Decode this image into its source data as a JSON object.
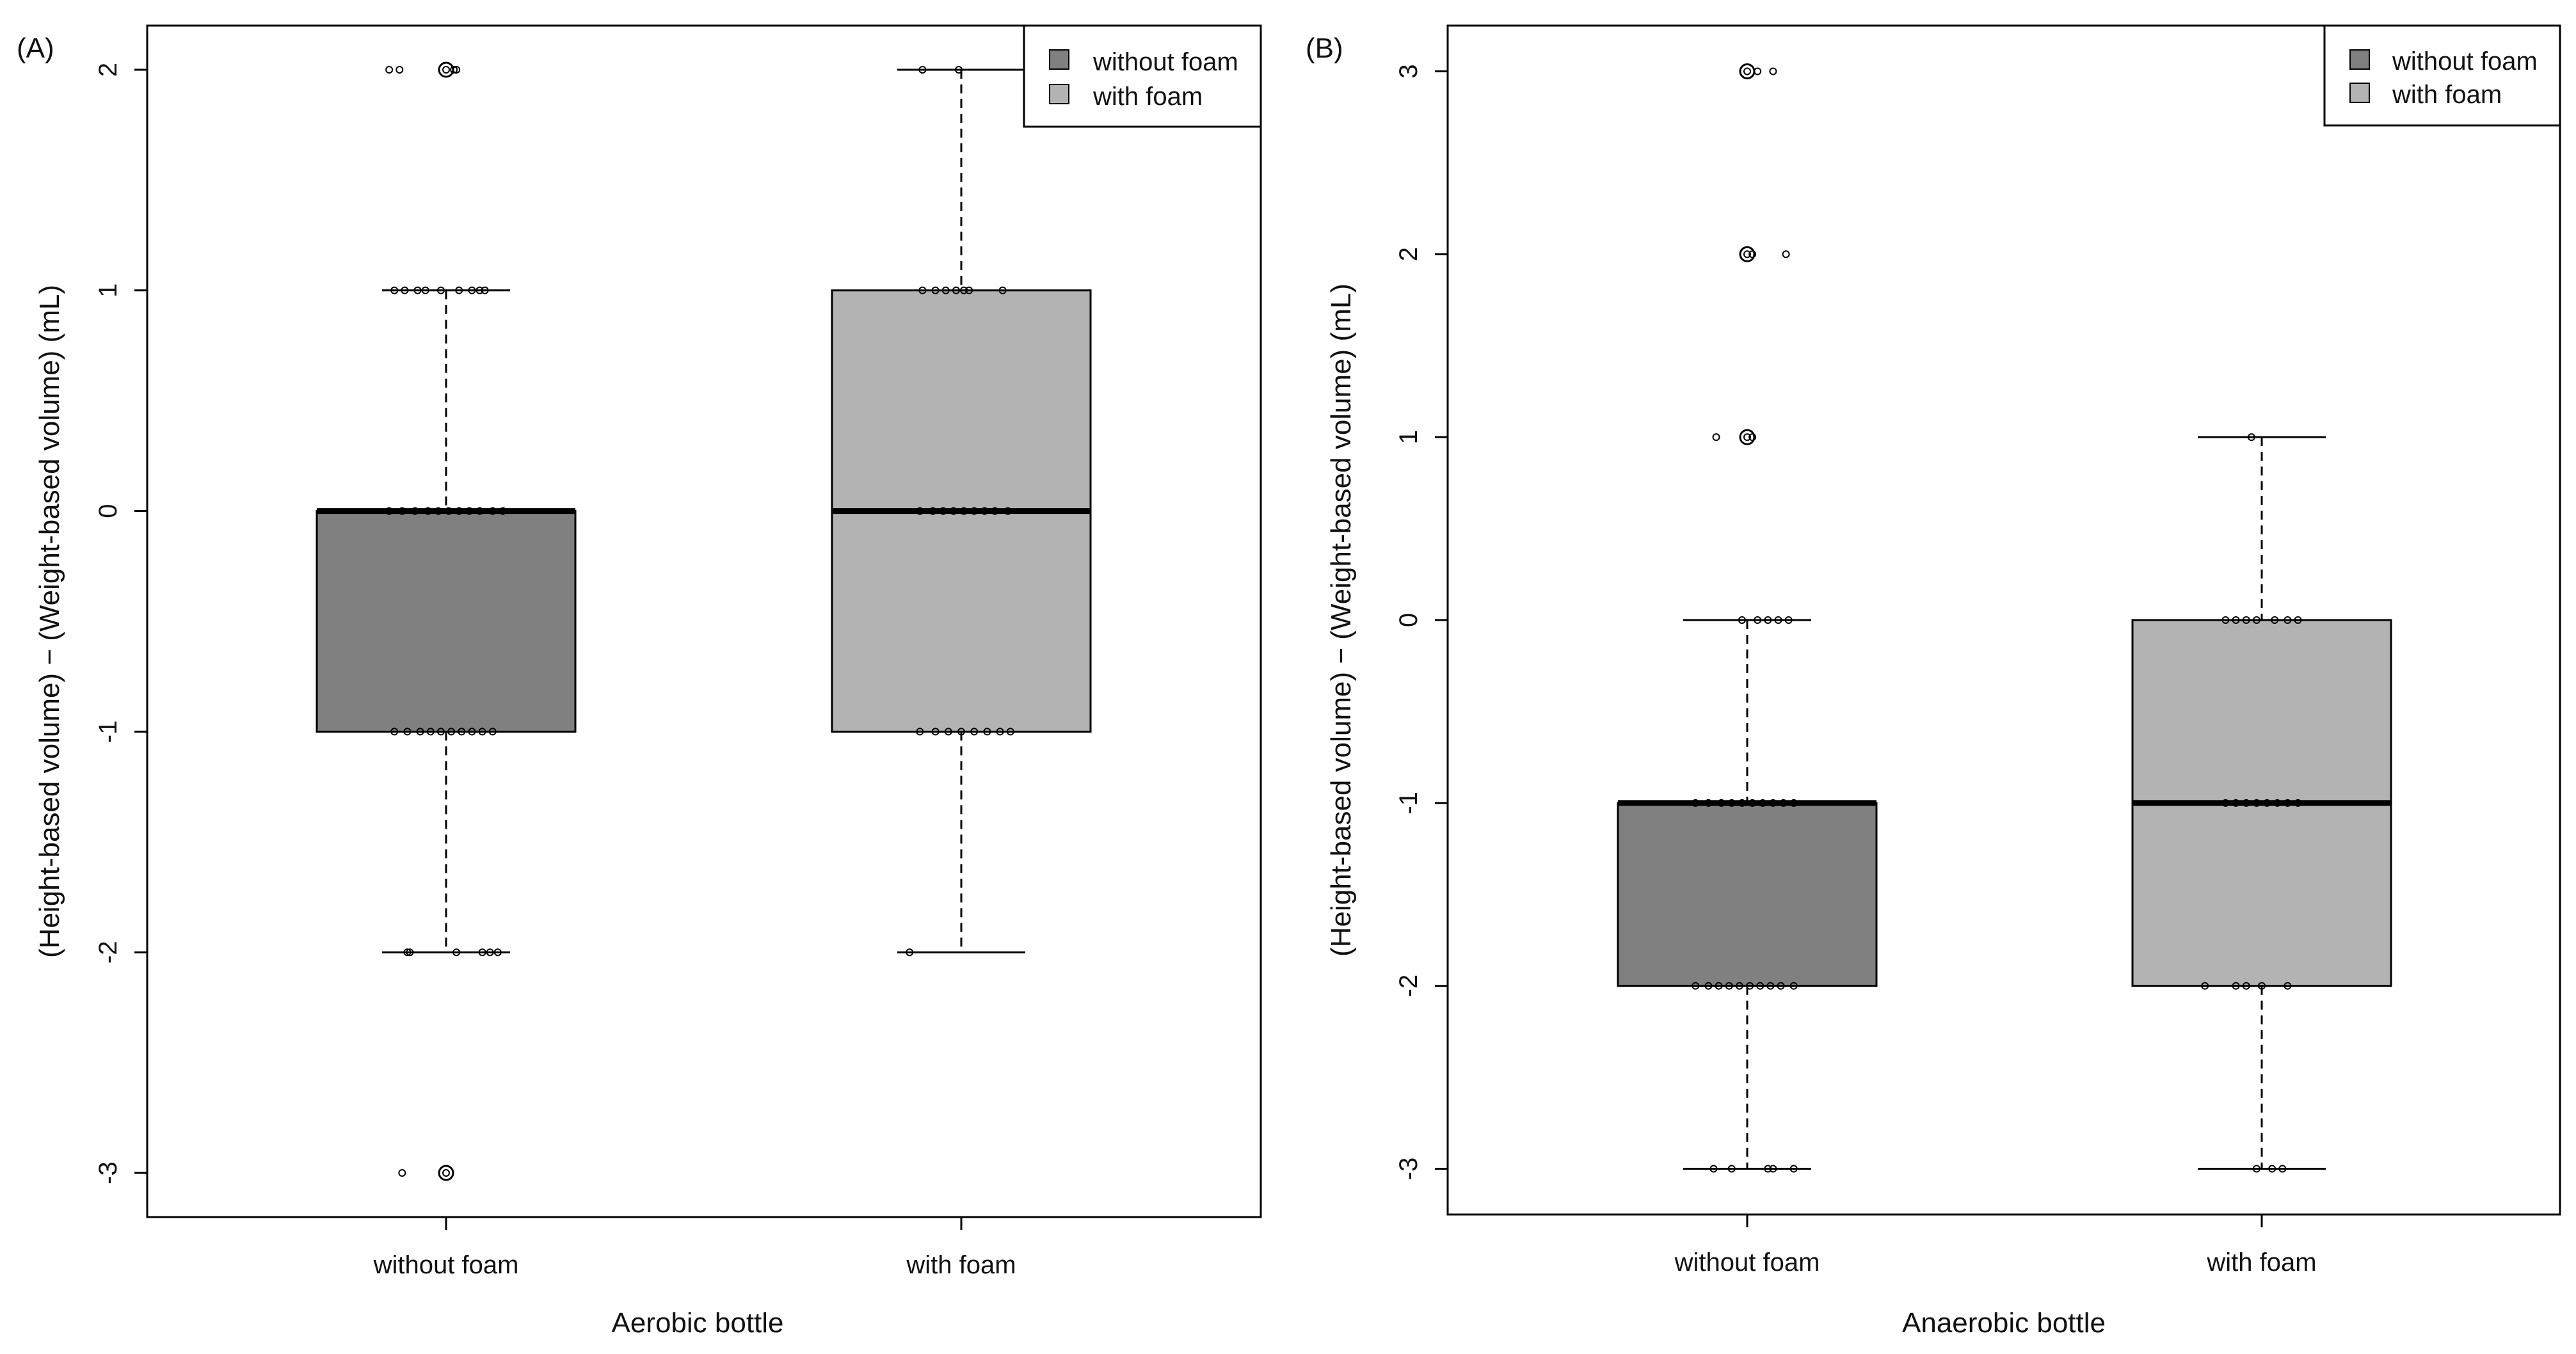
{
  "colors": {
    "without_foam_fill": "#808080",
    "with_foam_fill": "#b3b3b3",
    "frame": "#000000",
    "background": "#ffffff"
  },
  "chart_data": [
    {
      "type": "boxplot",
      "panel_label": "(A)",
      "title": "",
      "xlabel": "Aerobic bottle",
      "ylabel": "(Height-based volume) − (Weight-based volume) (mL)",
      "ylim": [
        -3.2,
        2.2
      ],
      "yticks": [
        -3,
        -2,
        -1,
        0,
        1,
        2
      ],
      "ytick_labels": [
        "-3",
        "-2",
        "-1",
        "0",
        "1",
        "2"
      ],
      "grid": false,
      "legend": {
        "position": "top-right",
        "entries": [
          "without foam",
          "with foam"
        ]
      },
      "categories": [
        "without foam",
        "with foam"
      ],
      "boxes": [
        {
          "name": "without foam",
          "q1": -1,
          "median": 0,
          "q3": 0,
          "whisker_low": -2,
          "whisker_high": 1,
          "outliers": [
            2,
            -3
          ],
          "points": [
            {
              "x": -0.22,
              "y": 2
            },
            {
              "x": -0.18,
              "y": 2
            },
            {
              "x": 0.0,
              "y": 2
            },
            {
              "x": 0.03,
              "y": 2
            },
            {
              "x": 0.04,
              "y": 2
            },
            {
              "x": -0.2,
              "y": 1
            },
            {
              "x": -0.16,
              "y": 1
            },
            {
              "x": -0.11,
              "y": 1
            },
            {
              "x": -0.08,
              "y": 1
            },
            {
              "x": -0.02,
              "y": 1
            },
            {
              "x": 0.05,
              "y": 1
            },
            {
              "x": 0.1,
              "y": 1
            },
            {
              "x": 0.13,
              "y": 1
            },
            {
              "x": 0.15,
              "y": 1
            },
            {
              "x": -0.22,
              "y": 0
            },
            {
              "x": -0.17,
              "y": 0
            },
            {
              "x": -0.12,
              "y": 0
            },
            {
              "x": -0.07,
              "y": 0
            },
            {
              "x": -0.03,
              "y": 0
            },
            {
              "x": 0.01,
              "y": 0
            },
            {
              "x": 0.05,
              "y": 0
            },
            {
              "x": 0.09,
              "y": 0
            },
            {
              "x": 0.13,
              "y": 0
            },
            {
              "x": 0.18,
              "y": 0
            },
            {
              "x": 0.22,
              "y": 0
            },
            {
              "x": -0.2,
              "y": -1
            },
            {
              "x": -0.15,
              "y": -1
            },
            {
              "x": -0.1,
              "y": -1
            },
            {
              "x": -0.06,
              "y": -1
            },
            {
              "x": -0.02,
              "y": -1
            },
            {
              "x": 0.02,
              "y": -1
            },
            {
              "x": 0.06,
              "y": -1
            },
            {
              "x": 0.1,
              "y": -1
            },
            {
              "x": 0.14,
              "y": -1
            },
            {
              "x": 0.18,
              "y": -1
            },
            {
              "x": -0.15,
              "y": -2
            },
            {
              "x": -0.14,
              "y": -2
            },
            {
              "x": 0.04,
              "y": -2
            },
            {
              "x": 0.14,
              "y": -2
            },
            {
              "x": 0.17,
              "y": -2
            },
            {
              "x": 0.2,
              "y": -2
            },
            {
              "x": -0.17,
              "y": -3
            },
            {
              "x": 0.0,
              "y": -3
            }
          ]
        },
        {
          "name": "with foam",
          "q1": -1,
          "median": 0,
          "q3": 1,
          "whisker_low": -2,
          "whisker_high": 2,
          "outliers": [],
          "points": [
            {
              "x": -0.15,
              "y": 2
            },
            {
              "x": -0.01,
              "y": 2
            },
            {
              "x": -0.15,
              "y": 1
            },
            {
              "x": -0.1,
              "y": 1
            },
            {
              "x": -0.06,
              "y": 1
            },
            {
              "x": -0.02,
              "y": 1
            },
            {
              "x": 0.01,
              "y": 1
            },
            {
              "x": 0.03,
              "y": 1
            },
            {
              "x": 0.16,
              "y": 1
            },
            {
              "x": -0.16,
              "y": 0
            },
            {
              "x": -0.11,
              "y": 0
            },
            {
              "x": -0.07,
              "y": 0
            },
            {
              "x": -0.03,
              "y": 0
            },
            {
              "x": 0.01,
              "y": 0
            },
            {
              "x": 0.05,
              "y": 0
            },
            {
              "x": 0.09,
              "y": 0
            },
            {
              "x": 0.13,
              "y": 0
            },
            {
              "x": 0.18,
              "y": 0
            },
            {
              "x": -0.16,
              "y": -1
            },
            {
              "x": -0.1,
              "y": -1
            },
            {
              "x": -0.05,
              "y": -1
            },
            {
              "x": 0.0,
              "y": -1
            },
            {
              "x": 0.05,
              "y": -1
            },
            {
              "x": 0.1,
              "y": -1
            },
            {
              "x": 0.15,
              "y": -1
            },
            {
              "x": 0.19,
              "y": -1
            },
            {
              "x": -0.2,
              "y": -2
            }
          ]
        }
      ]
    },
    {
      "type": "boxplot",
      "panel_label": "(B)",
      "title": "",
      "xlabel": "Anaerobic bottle",
      "ylabel": "(Height-based volume) − (Weight-based volume) (mL)",
      "ylim": [
        -3.25,
        3.25
      ],
      "yticks": [
        -3,
        -2,
        -1,
        0,
        1,
        2,
        3
      ],
      "ytick_labels": [
        "-3",
        "-2",
        "-1",
        "0",
        "1",
        "2",
        "3"
      ],
      "grid": false,
      "legend": {
        "position": "top-right",
        "entries": [
          "without foam",
          "with foam"
        ]
      },
      "categories": [
        "without foam",
        "with foam"
      ],
      "boxes": [
        {
          "name": "without foam",
          "q1": -2,
          "median": -1,
          "q3": -1,
          "whisker_low": -3,
          "whisker_high": 0,
          "outliers": [
            3,
            2,
            1
          ],
          "points": [
            {
              "x": 0.0,
              "y": 3
            },
            {
              "x": 0.04,
              "y": 3
            },
            {
              "x": 0.1,
              "y": 3
            },
            {
              "x": 0.0,
              "y": 2
            },
            {
              "x": 0.02,
              "y": 2
            },
            {
              "x": 0.15,
              "y": 2
            },
            {
              "x": -0.12,
              "y": 1
            },
            {
              "x": 0.0,
              "y": 1
            },
            {
              "x": 0.02,
              "y": 1
            },
            {
              "x": -0.02,
              "y": 0
            },
            {
              "x": 0.04,
              "y": 0
            },
            {
              "x": 0.08,
              "y": 0
            },
            {
              "x": 0.12,
              "y": 0
            },
            {
              "x": 0.16,
              "y": 0
            },
            {
              "x": -0.2,
              "y": -1
            },
            {
              "x": -0.15,
              "y": -1
            },
            {
              "x": -0.1,
              "y": -1
            },
            {
              "x": -0.06,
              "y": -1
            },
            {
              "x": -0.02,
              "y": -1
            },
            {
              "x": 0.02,
              "y": -1
            },
            {
              "x": 0.06,
              "y": -1
            },
            {
              "x": 0.1,
              "y": -1
            },
            {
              "x": 0.14,
              "y": -1
            },
            {
              "x": 0.18,
              "y": -1
            },
            {
              "x": -0.2,
              "y": -2
            },
            {
              "x": -0.15,
              "y": -2
            },
            {
              "x": -0.11,
              "y": -2
            },
            {
              "x": -0.07,
              "y": -2
            },
            {
              "x": -0.03,
              "y": -2
            },
            {
              "x": 0.01,
              "y": -2
            },
            {
              "x": 0.05,
              "y": -2
            },
            {
              "x": 0.09,
              "y": -2
            },
            {
              "x": 0.13,
              "y": -2
            },
            {
              "x": 0.18,
              "y": -2
            },
            {
              "x": -0.13,
              "y": -3
            },
            {
              "x": -0.06,
              "y": -3
            },
            {
              "x": 0.08,
              "y": -3
            },
            {
              "x": 0.1,
              "y": -3
            },
            {
              "x": 0.18,
              "y": -3
            }
          ]
        },
        {
          "name": "with foam",
          "q1": -2,
          "median": -1,
          "q3": 0,
          "whisker_low": -3,
          "whisker_high": 1,
          "outliers": [],
          "points": [
            {
              "x": -0.04,
              "y": 1
            },
            {
              "x": -0.14,
              "y": 0
            },
            {
              "x": -0.1,
              "y": 0
            },
            {
              "x": -0.06,
              "y": 0
            },
            {
              "x": -0.02,
              "y": 0
            },
            {
              "x": 0.05,
              "y": 0
            },
            {
              "x": 0.1,
              "y": 0
            },
            {
              "x": 0.14,
              "y": 0
            },
            {
              "x": -0.14,
              "y": -1
            },
            {
              "x": -0.1,
              "y": -1
            },
            {
              "x": -0.06,
              "y": -1
            },
            {
              "x": -0.02,
              "y": -1
            },
            {
              "x": 0.02,
              "y": -1
            },
            {
              "x": 0.06,
              "y": -1
            },
            {
              "x": 0.1,
              "y": -1
            },
            {
              "x": 0.14,
              "y": -1
            },
            {
              "x": -0.22,
              "y": -2
            },
            {
              "x": -0.1,
              "y": -2
            },
            {
              "x": -0.06,
              "y": -2
            },
            {
              "x": 0.0,
              "y": -2
            },
            {
              "x": 0.1,
              "y": -2
            },
            {
              "x": -0.02,
              "y": -3
            },
            {
              "x": 0.04,
              "y": -3
            },
            {
              "x": 0.08,
              "y": -3
            }
          ]
        }
      ]
    }
  ]
}
